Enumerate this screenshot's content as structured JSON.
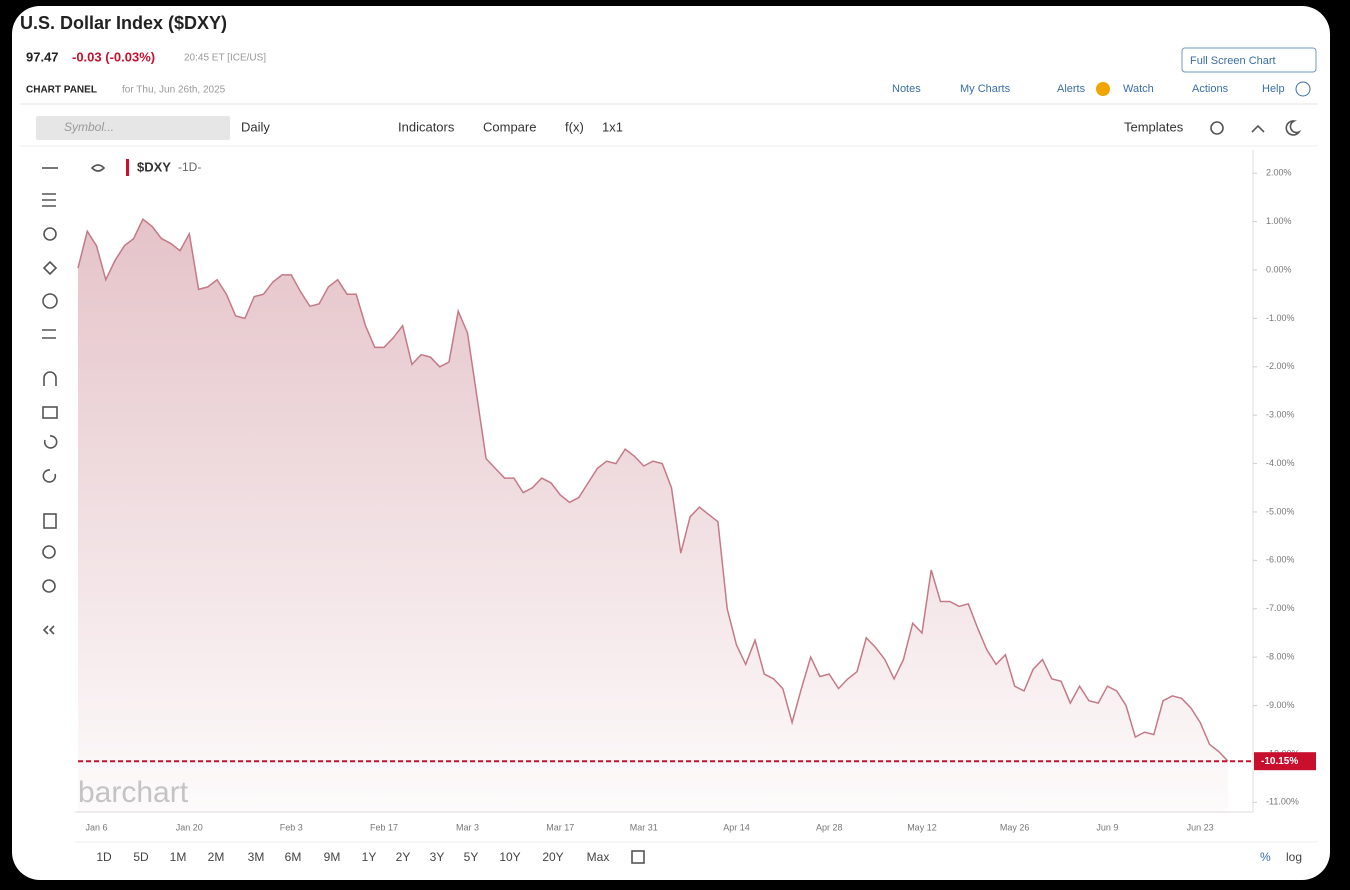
{
  "header": {
    "title": "U.S. Dollar Index ($DXY)",
    "price": "97.47",
    "change": "-0.03 (-0.03%)",
    "time": "20:45 ET [ICE/US]",
    "panel_label": "CHART PANEL",
    "panel_date": "for Thu, Jun 26th, 2025",
    "full_screen": "Full Screen Chart"
  },
  "nav": [
    "Notes",
    "My Charts",
    "Alerts",
    "Watch",
    "Actions",
    "Help"
  ],
  "toolbar": {
    "search": "Symbol...",
    "interval": "Daily",
    "indicators": "Indicators",
    "compare": "Compare",
    "fx": "f(x)",
    "layout": "1x1",
    "templates": "Templates"
  },
  "legend": {
    "symbol": "$DXY",
    "period": "-1D-"
  },
  "watermark": "barchart",
  "periods": [
    "1D",
    "5D",
    "1M",
    "2M",
    "3M",
    "6M",
    "9M",
    "1Y",
    "2Y",
    "3Y",
    "5Y",
    "10Y",
    "20Y",
    "Max"
  ],
  "scale": {
    "percent": "%",
    "log": "log"
  },
  "chart_data": {
    "type": "line",
    "color": "#c47a86",
    "last_value_label": "-10.15%",
    "categories": [
      null,
      null,
      "Jan 6",
      null,
      null,
      null,
      null,
      null,
      null,
      null,
      null,
      null,
      "Jan 20",
      null,
      null,
      null,
      null,
      null,
      null,
      null,
      null,
      null,
      null,
      "Feb 3",
      null,
      null,
      null,
      null,
      null,
      null,
      null,
      null,
      null,
      "Feb 17",
      null,
      null,
      null,
      null,
      null,
      null,
      null,
      null,
      "Mar 3",
      null,
      null,
      null,
      null,
      null,
      null,
      null,
      null,
      null,
      "Mar 17",
      null,
      null,
      null,
      null,
      null,
      null,
      null,
      null,
      "Mar 31",
      null,
      null,
      null,
      null,
      null,
      null,
      null,
      null,
      null,
      "Apr 14",
      null,
      null,
      null,
      null,
      null,
      null,
      null,
      null,
      null,
      "Apr 28",
      null,
      null,
      null,
      null,
      null,
      null,
      null,
      null,
      null,
      "May 12",
      null,
      null,
      null,
      null,
      null,
      null,
      null,
      null,
      null,
      "May 26",
      null,
      null,
      null,
      null,
      null,
      null,
      null,
      null,
      null,
      "Jun 9",
      null,
      null,
      null,
      null,
      null,
      null,
      null,
      null,
      null,
      "Jun 23",
      null,
      null,
      null
    ],
    "values": [
      0.04,
      0.8,
      0.5,
      -0.2,
      0.2,
      0.5,
      0.65,
      1.05,
      0.9,
      0.65,
      0.55,
      0.4,
      0.75,
      -0.4,
      -0.35,
      -0.2,
      -0.5,
      -0.95,
      -1.0,
      -0.55,
      -0.5,
      -0.25,
      -0.1,
      -0.1,
      -0.45,
      -0.75,
      -0.7,
      -0.35,
      -0.2,
      -0.5,
      -0.5,
      -1.15,
      -1.6,
      -1.6,
      -1.4,
      -1.15,
      -1.95,
      -1.75,
      -1.8,
      -2.0,
      -1.9,
      -0.85,
      -1.3,
      -2.6,
      -3.9,
      -4.1,
      -4.3,
      -4.3,
      -4.6,
      -4.5,
      -4.3,
      -4.4,
      -4.65,
      -4.8,
      -4.7,
      -4.4,
      -4.1,
      -3.95,
      -4.0,
      -3.7,
      -3.85,
      -4.05,
      -3.95,
      -4.0,
      -4.5,
      -5.85,
      -5.1,
      -4.9,
      -5.05,
      -5.2,
      -7.0,
      -7.75,
      -8.15,
      -7.65,
      -8.35,
      -8.45,
      -8.65,
      -9.35,
      -8.65,
      -8.0,
      -8.4,
      -8.35,
      -8.65,
      -8.45,
      -8.3,
      -7.6,
      -7.8,
      -8.05,
      -8.45,
      -8.05,
      -7.3,
      -7.5,
      -6.2,
      -6.85,
      -6.85,
      -6.95,
      -6.9,
      -7.4,
      -7.85,
      -8.15,
      -7.95,
      -8.6,
      -8.7,
      -8.25,
      -8.05,
      -8.45,
      -8.5,
      -8.95,
      -8.6,
      -8.9,
      -8.95,
      -8.6,
      -8.7,
      -9.0,
      -9.65,
      -9.55,
      -9.6,
      -8.9,
      -8.8,
      -8.85,
      -9.05,
      -9.35,
      -9.8,
      -9.95,
      -10.15
    ],
    "ylim": [
      -11.2,
      2.48
    ],
    "yticks": [
      {
        "value": 2,
        "label": "2.00%"
      },
      {
        "value": 1,
        "label": "1.00%"
      },
      {
        "value": 0,
        "label": "0.00%"
      },
      {
        "value": -1,
        "label": "-1.00%"
      },
      {
        "value": -2,
        "label": "-2.00%"
      },
      {
        "value": -3,
        "label": "-3.00%"
      },
      {
        "value": -4,
        "label": "-4.00%"
      },
      {
        "value": -5,
        "label": "-5.00%"
      },
      {
        "value": -6,
        "label": "-6.00%"
      },
      {
        "value": -7,
        "label": "-7.00%"
      },
      {
        "value": -8,
        "label": "-8.00%"
      },
      {
        "value": -9,
        "label": "-9.00%"
      },
      {
        "value": -10,
        "label": "-10.00%"
      },
      {
        "value": -11,
        "label": "-11.00%"
      }
    ]
  }
}
